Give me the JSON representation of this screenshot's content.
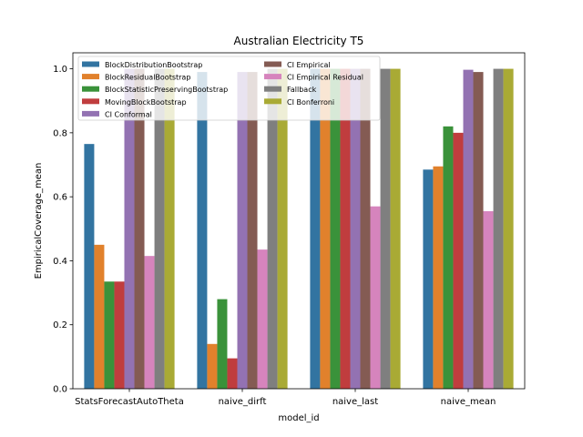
{
  "chart_data": {
    "type": "bar",
    "title": "Australian Electricity T5",
    "xlabel": "model_id",
    "ylabel": "EmpiricalCoverage_mean",
    "ylim": [
      0,
      1.05
    ],
    "yticks": [
      "0.0",
      "0.2",
      "0.4",
      "0.6",
      "0.8",
      "1.0"
    ],
    "categories": [
      "StatsForecastAutoTheta",
      "naive_dirft",
      "naive_last",
      "naive_mean"
    ],
    "legend_position": "upper-left",
    "series": [
      {
        "name": "BlockDistributionBootstrap",
        "color": "#3274a1",
        "values": [
          0.765,
          0.99,
          1.0,
          0.685
        ]
      },
      {
        "name": "BlockResidualBootstrap",
        "color": "#e1812c",
        "values": [
          0.45,
          0.14,
          1.0,
          0.695
        ]
      },
      {
        "name": "BlockStatisticPreservingBootstrap",
        "color": "#3a923a",
        "values": [
          0.335,
          0.28,
          1.0,
          0.82
        ]
      },
      {
        "name": "MovingBlockBootstrap",
        "color": "#c03d3e",
        "values": [
          0.335,
          0.095,
          1.0,
          0.8
        ]
      },
      {
        "name": "CI Conformal",
        "color": "#9372b2",
        "values": [
          1.0,
          0.99,
          1.0,
          0.997
        ]
      },
      {
        "name": "CI Empirical",
        "color": "#845b53",
        "values": [
          1.0,
          0.99,
          1.0,
          0.99
        ]
      },
      {
        "name": "CI Empirical Residual",
        "color": "#d684bd",
        "values": [
          0.415,
          0.435,
          0.57,
          0.555
        ]
      },
      {
        "name": "Fallback",
        "color": "#7f7f7f",
        "values": [
          1.0,
          1.0,
          1.0,
          1.0
        ]
      },
      {
        "name": "CI Bonferroni",
        "color": "#a9aa35",
        "values": [
          1.0,
          1.0,
          1.0,
          1.0
        ]
      }
    ]
  }
}
